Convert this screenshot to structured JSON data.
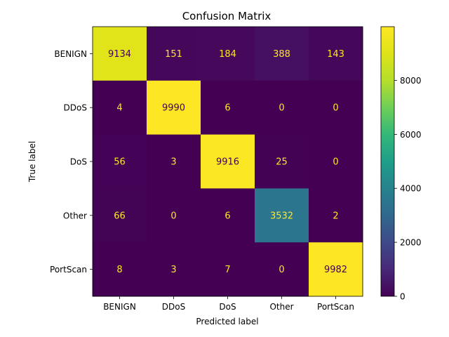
{
  "chart_data": {
    "type": "heatmap",
    "title": "Confusion Matrix",
    "xlabel": "Predicted label",
    "ylabel": "True label",
    "x_categories": [
      "BENIGN",
      "DDoS",
      "DoS",
      "Other",
      "PortScan"
    ],
    "y_categories": [
      "BENIGN",
      "DDoS",
      "DoS",
      "Other",
      "PortScan"
    ],
    "matrix": [
      [
        9134,
        151,
        184,
        388,
        143
      ],
      [
        4,
        9990,
        6,
        0,
        0
      ],
      [
        56,
        3,
        9916,
        25,
        0
      ],
      [
        66,
        0,
        6,
        3532,
        2
      ],
      [
        8,
        3,
        7,
        0,
        9982
      ]
    ],
    "colormap": "viridis",
    "value_range": [
      0,
      9990
    ],
    "colorbar_ticks": [
      0,
      2000,
      4000,
      6000,
      8000
    ],
    "grid": false,
    "annotation_colors": {
      "on_dark": "#fde725",
      "on_light": "#440154"
    }
  }
}
